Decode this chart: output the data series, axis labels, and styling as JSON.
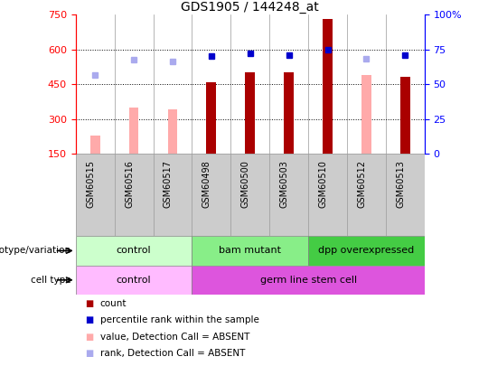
{
  "title": "GDS1905 / 144248_at",
  "samples": [
    "GSM60515",
    "GSM60516",
    "GSM60517",
    "GSM60498",
    "GSM60500",
    "GSM60503",
    "GSM60510",
    "GSM60512",
    "GSM60513"
  ],
  "count_values": [
    null,
    null,
    null,
    460,
    500,
    500,
    730,
    null,
    480
  ],
  "count_color": "#aa0000",
  "value_absent": [
    230,
    350,
    340,
    null,
    null,
    null,
    null,
    490,
    null
  ],
  "value_absent_color": "#ffaaaa",
  "percentile_rank": [
    null,
    null,
    null,
    570,
    582,
    577,
    600,
    null,
    577
  ],
  "percentile_rank_color": "#0000cc",
  "rank_absent": [
    490,
    555,
    548,
    null,
    null,
    null,
    null,
    558,
    null
  ],
  "rank_absent_color": "#aaaaee",
  "ymin": 150,
  "ymax": 750,
  "yticks": [
    150,
    300,
    450,
    600,
    750
  ],
  "ylabels": [
    "150",
    "300",
    "450",
    "600",
    "750"
  ],
  "y2ticks": [
    0,
    25,
    50,
    75,
    100
  ],
  "y2labels": [
    "0",
    "25",
    "50",
    "75",
    "100%"
  ],
  "dotted_lines": [
    300,
    450,
    600
  ],
  "genotype_groups": [
    {
      "label": "control",
      "start": 0,
      "end": 3,
      "color": "#ccffcc"
    },
    {
      "label": "bam mutant",
      "start": 3,
      "end": 6,
      "color": "#88ee88"
    },
    {
      "label": "dpp overexpressed",
      "start": 6,
      "end": 9,
      "color": "#44cc44"
    }
  ],
  "celltype_groups": [
    {
      "label": "control",
      "start": 0,
      "end": 3,
      "color": "#ffbbff"
    },
    {
      "label": "germ line stem cell",
      "start": 3,
      "end": 9,
      "color": "#dd55dd"
    }
  ],
  "legend_items": [
    {
      "label": "count",
      "color": "#aa0000"
    },
    {
      "label": "percentile rank within the sample",
      "color": "#0000cc"
    },
    {
      "label": "value, Detection Call = ABSENT",
      "color": "#ffaaaa"
    },
    {
      "label": "rank, Detection Call = ABSENT",
      "color": "#aaaaee"
    }
  ],
  "bar_width": 0.25,
  "annotation_row1_label": "genotype/variation",
  "annotation_row2_label": "cell type",
  "sample_bg_color": "#cccccc",
  "sample_border_color": "#999999"
}
